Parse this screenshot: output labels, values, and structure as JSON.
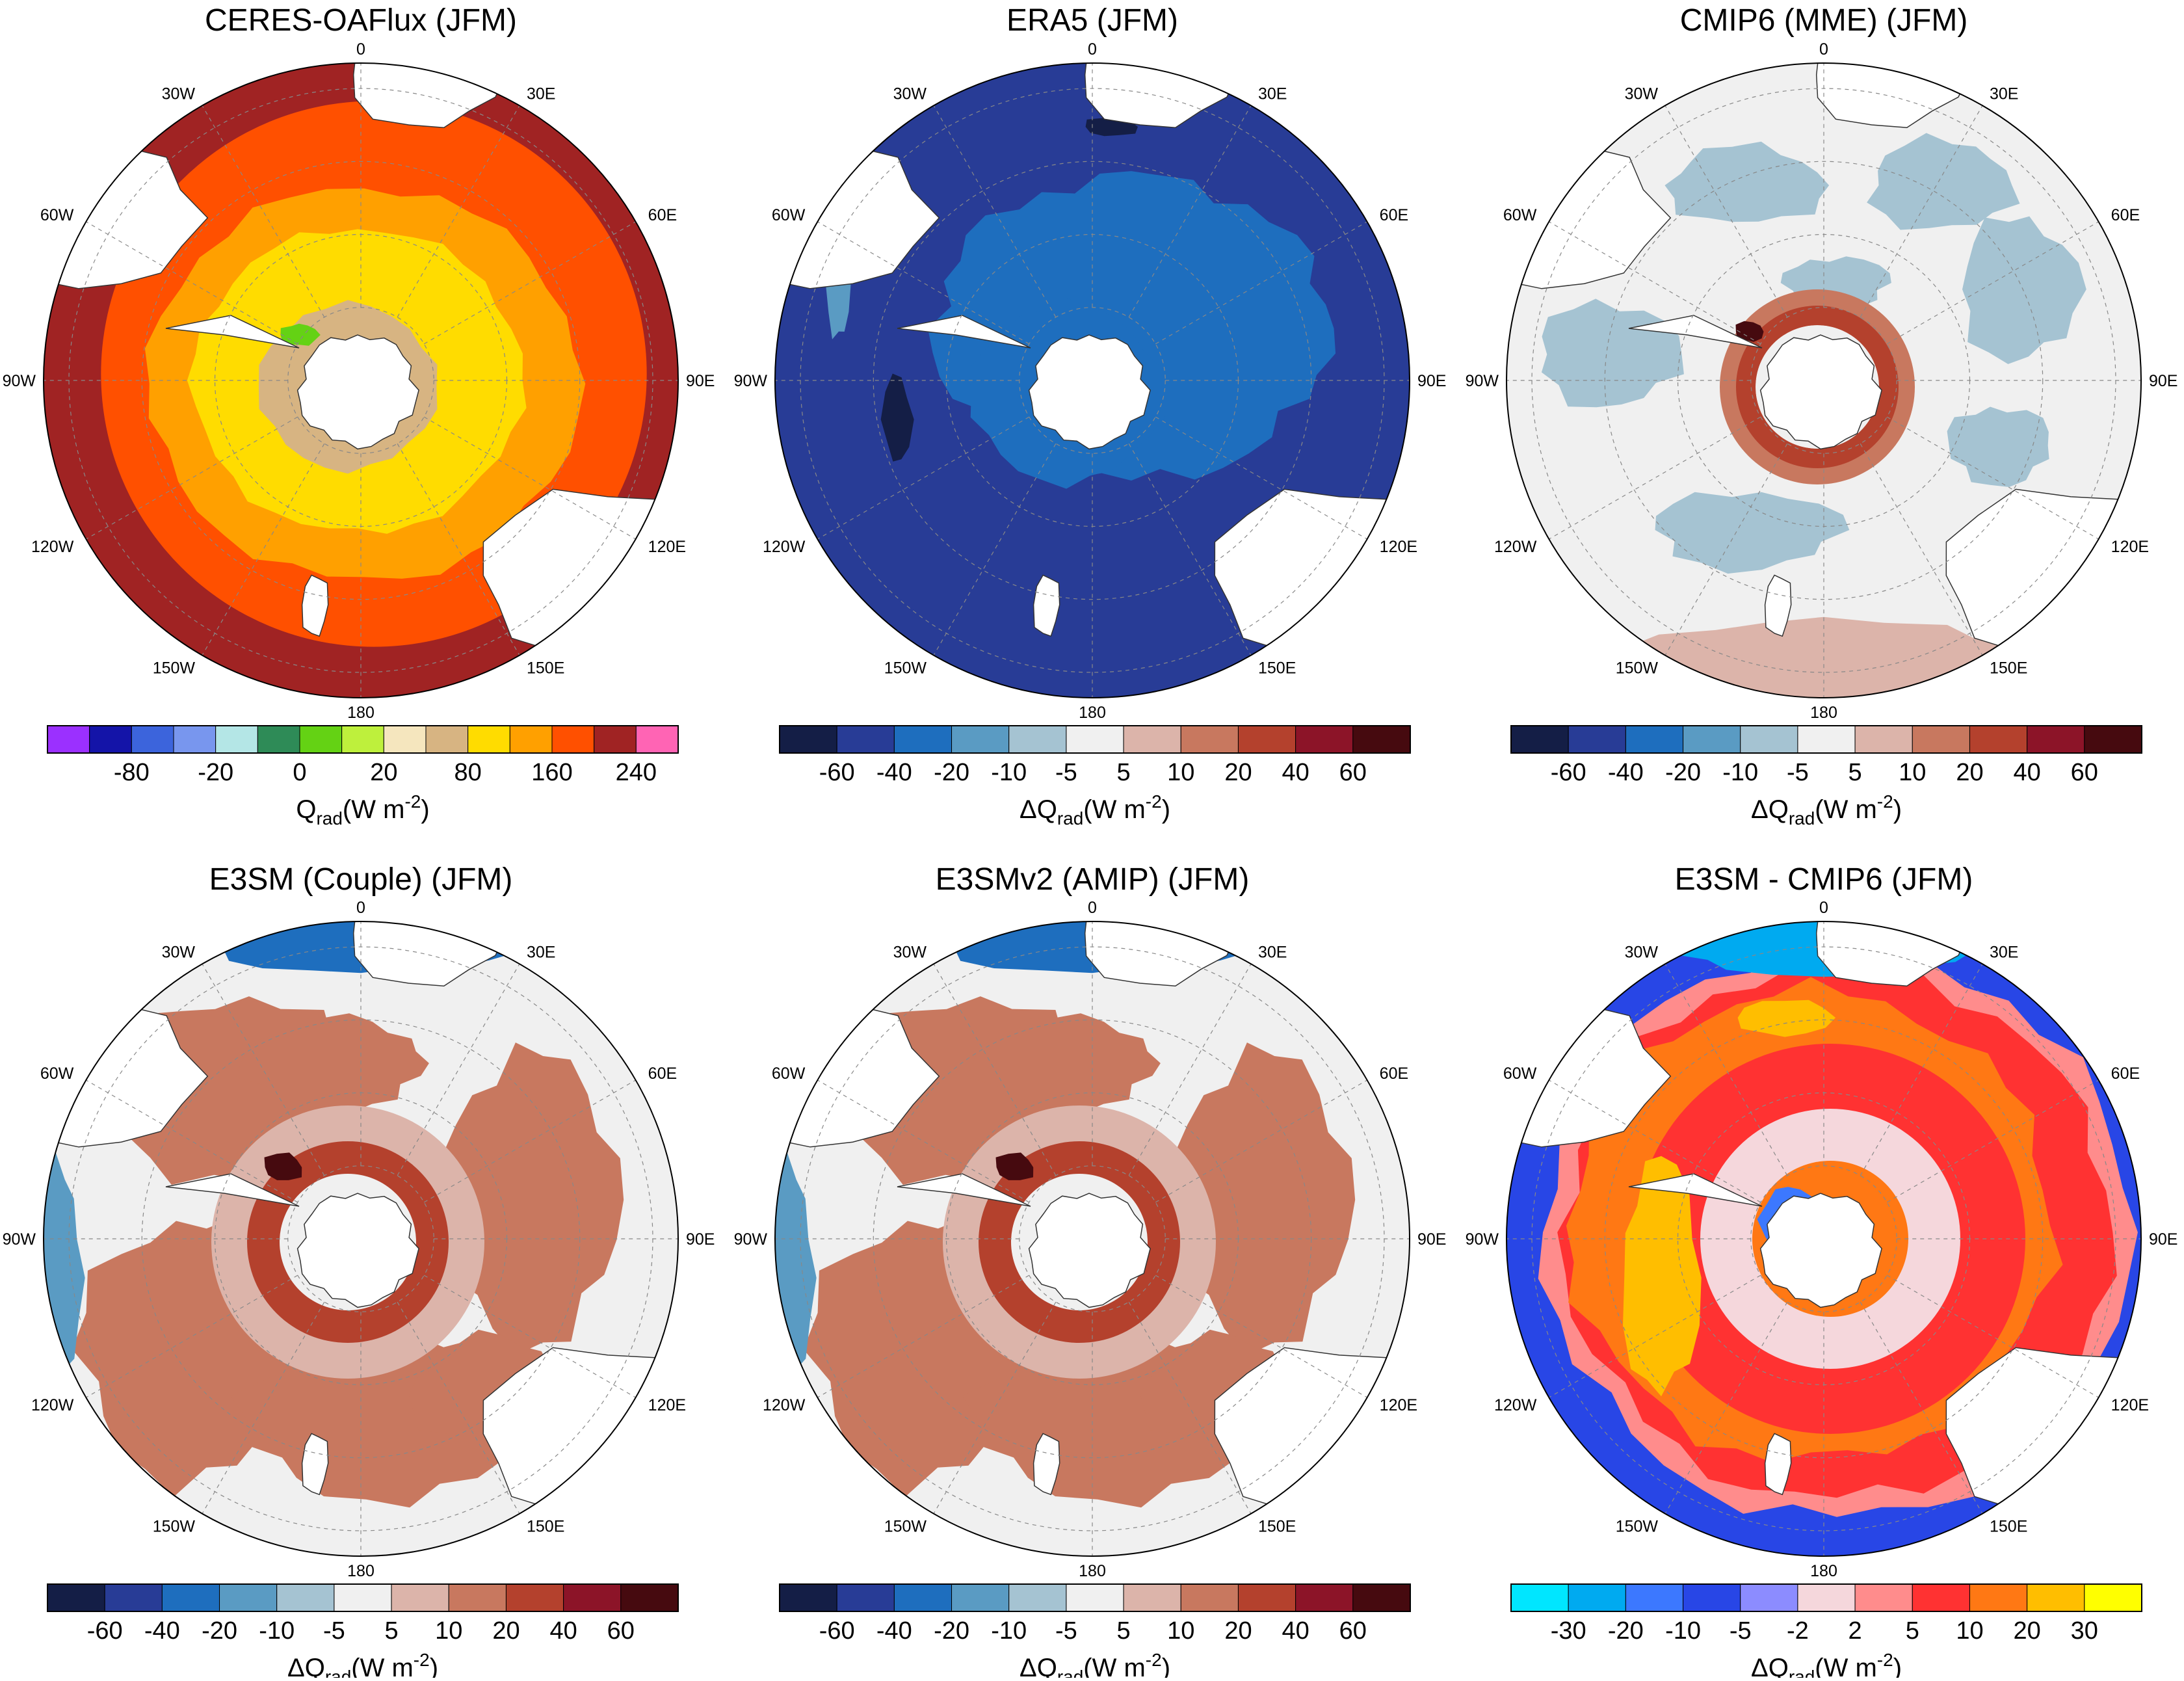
{
  "panels": [
    {
      "title": "CERES-OAFlux  (JFM)",
      "scheme": "abs",
      "colorbar": {
        "colors": [
          "#9b30ff",
          "#1414a8",
          "#3c64dc",
          "#7896ee",
          "#b4e6e6",
          "#2e8b57",
          "#64d214",
          "#bef03c",
          "#f5e6be",
          "#d7b482",
          "#ffdc00",
          "#ffa000",
          "#ff5000",
          "#a02323",
          "#ff64b4"
        ],
        "ticks": [
          "-80",
          "-20",
          "0",
          "20",
          "80",
          "160",
          "240"
        ],
        "label_main": "Q",
        "label_sub": "rad",
        "label_units": "(W m",
        "label_exp": "-2",
        "label_close": ")"
      }
    },
    {
      "title": "ERA5  (JFM)",
      "scheme": "era5",
      "colorbar": {
        "colors": [
          "#141e46",
          "#283c96",
          "#1e6ebe",
          "#5a9bc3",
          "#a5c3d2",
          "#f0f0f0",
          "#dcb4aa",
          "#c8785f",
          "#b4412d",
          "#8c1428",
          "#460a0f"
        ],
        "ticks": [
          "-60",
          "-40",
          "-20",
          "-10",
          "-5",
          "5",
          "10",
          "20",
          "40",
          "60"
        ],
        "label_main": "ΔQ",
        "label_sub": "rad",
        "label_units": "(W m",
        "label_exp": "-2",
        "label_close": ")"
      }
    },
    {
      "title": "CMIP6 (MME)  (JFM)",
      "scheme": "cmip",
      "colorbar": {
        "colors": [
          "#141e46",
          "#283c96",
          "#1e6ebe",
          "#5a9bc3",
          "#a5c3d2",
          "#f0f0f0",
          "#dcb4aa",
          "#c8785f",
          "#b4412d",
          "#8c1428",
          "#460a0f"
        ],
        "ticks": [
          "-60",
          "-40",
          "-20",
          "-10",
          "-5",
          "5",
          "10",
          "20",
          "40",
          "60"
        ],
        "label_main": "ΔQ",
        "label_sub": "rad",
        "label_units": "(W m",
        "label_exp": "-2",
        "label_close": ")"
      }
    },
    {
      "title": "E3SM (Couple)  (JFM)",
      "scheme": "e3sm",
      "colorbar": {
        "colors": [
          "#141e46",
          "#283c96",
          "#1e6ebe",
          "#5a9bc3",
          "#a5c3d2",
          "#f0f0f0",
          "#dcb4aa",
          "#c8785f",
          "#b4412d",
          "#8c1428",
          "#460a0f"
        ],
        "ticks": [
          "-60",
          "-40",
          "-20",
          "-10",
          "-5",
          "5",
          "10",
          "20",
          "40",
          "60"
        ],
        "label_main": "ΔQ",
        "label_sub": "rad",
        "label_units": "(W m",
        "label_exp": "-2",
        "label_close": ")"
      }
    },
    {
      "title": "E3SMv2 (AMIP)  (JFM)",
      "scheme": "e3sm",
      "colorbar": {
        "colors": [
          "#141e46",
          "#283c96",
          "#1e6ebe",
          "#5a9bc3",
          "#a5c3d2",
          "#f0f0f0",
          "#dcb4aa",
          "#c8785f",
          "#b4412d",
          "#8c1428",
          "#460a0f"
        ],
        "ticks": [
          "-60",
          "-40",
          "-20",
          "-10",
          "-5",
          "5",
          "10",
          "20",
          "40",
          "60"
        ],
        "label_main": "ΔQ",
        "label_sub": "rad",
        "label_units": "(W m",
        "label_exp": "-2",
        "label_close": ")"
      }
    },
    {
      "title": "E3SM - CMIP6  (JFM)",
      "scheme": "diff",
      "colorbar": {
        "colors": [
          "#00e6ff",
          "#00aaf0",
          "#3c78ff",
          "#2846e6",
          "#8c8cff",
          "#f5d7dc",
          "#ff8c8c",
          "#ff3232",
          "#ff7814",
          "#ffbe00",
          "#ffff00"
        ],
        "ticks": [
          "-30",
          "-20",
          "-10",
          "-5",
          "-2",
          "2",
          "5",
          "10",
          "20",
          "30"
        ],
        "label_main": "ΔQ",
        "label_sub": "rad",
        "label_units": "(W m",
        "label_exp": "-2",
        "label_close": ")"
      }
    }
  ],
  "lon_labels": [
    "0",
    "30E",
    "60E",
    "90E",
    "120E",
    "150E",
    "180",
    "150W",
    "120W",
    "90W",
    "60W",
    "30W"
  ]
}
